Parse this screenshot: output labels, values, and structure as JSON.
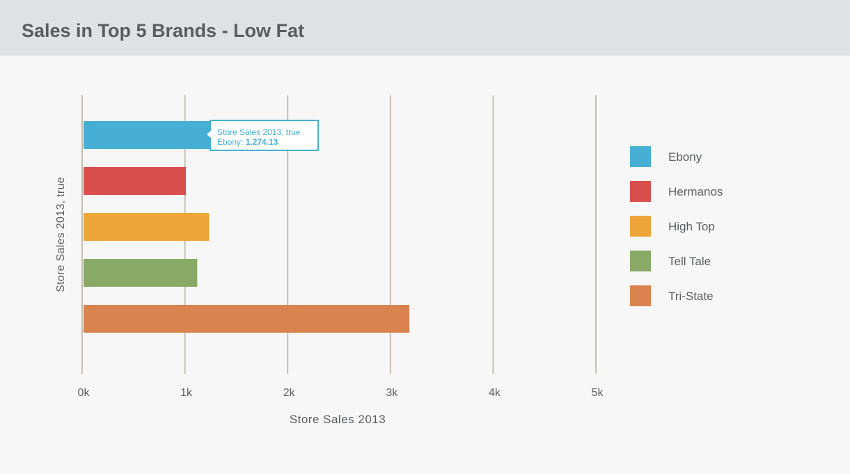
{
  "header": {
    "title": "Sales in Top 5 Brands - Low Fat"
  },
  "chart_data": {
    "type": "bar",
    "orientation": "horizontal",
    "title": "Sales in Top 5 Brands - Low Fat",
    "xlabel": "Store Sales 2013",
    "ylabel": "Store Sales 2013, true",
    "xlim": [
      0,
      5000
    ],
    "xticks": [
      0,
      1000,
      2000,
      3000,
      4000,
      5000
    ],
    "xtick_labels": [
      "0k",
      "1k",
      "2k",
      "3k",
      "4k",
      "5k"
    ],
    "grid": "vertical",
    "legend_position": "right",
    "categories": [
      "Ebony",
      "Hermanos",
      "High Top",
      "Tell Tale",
      "Tri-State"
    ],
    "values": [
      1274.13,
      1010,
      1235,
      1120,
      3185
    ],
    "colors": [
      "#46afd3",
      "#d94f4d",
      "#eda53a",
      "#88aa66",
      "#d9834f"
    ]
  },
  "tooltip": {
    "line1": "Store Sales 2013, true",
    "series_label": "Ebony: ",
    "value": "1,274.13"
  },
  "legend": {
    "items": [
      {
        "label": "Ebony",
        "color": "#46afd3"
      },
      {
        "label": "Hermanos",
        "color": "#d94f4d"
      },
      {
        "label": "High Top",
        "color": "#eda53a"
      },
      {
        "label": "Tell Tale",
        "color": "#88aa66"
      },
      {
        "label": "Tri-State",
        "color": "#d9834f"
      }
    ]
  },
  "colors": {
    "grid": "#c6bfb0",
    "text": "#5a5c5f",
    "title_bar": "#e0e1e2",
    "background": "#f7f7f7"
  }
}
